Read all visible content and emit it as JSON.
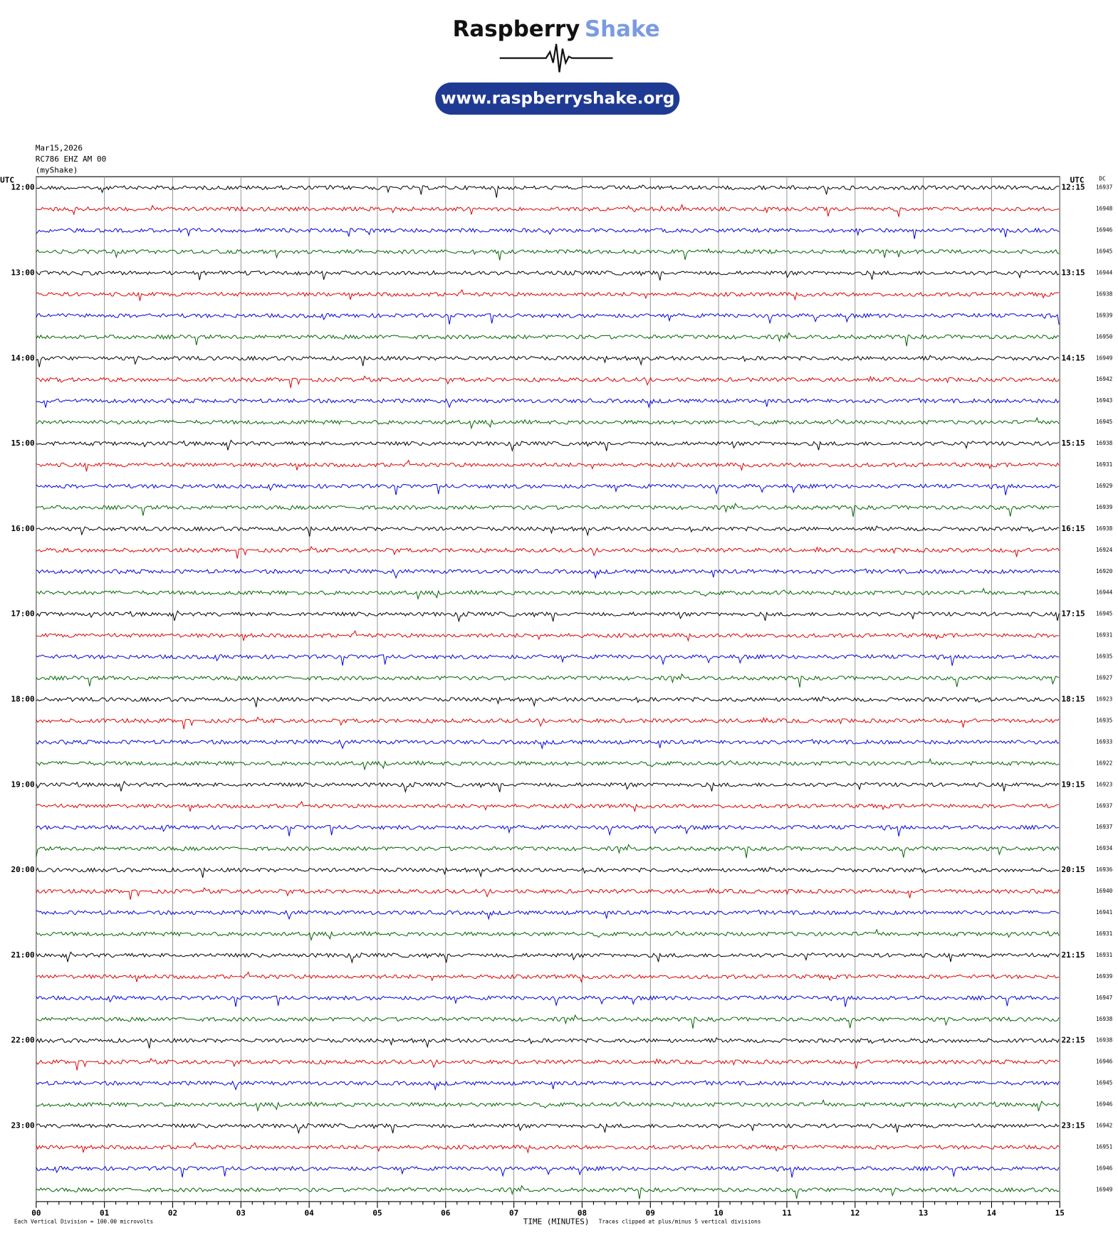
{
  "header": {
    "brand": "Raspberry",
    "brand_accent": "Shake",
    "url": "www.raspberryshake.org"
  },
  "chart_data": {
    "type": "helicorder",
    "date": "Mar15,2026",
    "station": "RC786 EHZ AM 00",
    "owner": "(myShake)",
    "left_axis_label": "UTC",
    "right_axis_label": "UTC",
    "dc_label": "DC",
    "left_labels": [
      "12:00",
      "13:00",
      "14:00",
      "15:00",
      "16:00",
      "17:00",
      "18:00",
      "19:00",
      "20:00",
      "21:00",
      "22:00",
      "23:00"
    ],
    "right_labels": [
      "12:15",
      "13:15",
      "14:15",
      "15:15",
      "16:15",
      "17:15",
      "18:15",
      "19:15",
      "20:15",
      "21:15",
      "22:15",
      "23:15"
    ],
    "dc_values": [
      16937,
      16948,
      16946,
      16945,
      16944,
      16938,
      16939,
      16950,
      16949,
      16942,
      16943,
      16945,
      16938,
      16931,
      16929,
      16939,
      16938,
      16924,
      16920,
      16944,
      16945,
      16931,
      16935,
      16927,
      16923,
      16935,
      16933,
      16922,
      16923,
      16937,
      16937,
      16934,
      16936,
      16940,
      16941,
      16931,
      16931,
      16939,
      16947,
      16938,
      16938,
      16946,
      16945,
      16946,
      16942,
      16951,
      16946,
      16949
    ],
    "trace_colors": [
      "#000000",
      "#e00000",
      "#0000e0",
      "#006400"
    ],
    "xlim": [
      0,
      15
    ],
    "xticks": [
      {
        "value": 0,
        "label": "00"
      },
      {
        "value": 1,
        "label": "01"
      },
      {
        "value": 2,
        "label": "02"
      },
      {
        "value": 3,
        "label": "03"
      },
      {
        "value": 4,
        "label": "04"
      },
      {
        "value": 5,
        "label": "05"
      },
      {
        "value": 6,
        "label": "06"
      },
      {
        "value": 7,
        "label": "07"
      },
      {
        "value": 8,
        "label": "08"
      },
      {
        "value": 9,
        "label": "09"
      },
      {
        "value": 10,
        "label": "10"
      },
      {
        "value": 11,
        "label": "11"
      },
      {
        "value": 12,
        "label": "12"
      },
      {
        "value": 13,
        "label": "13"
      },
      {
        "value": 14,
        "label": "14"
      },
      {
        "value": 15,
        "label": "15"
      }
    ],
    "xlabel": "TIME (MINUTES)",
    "scale_note": "Each Vertical Division =  100.00 microvolts",
    "clip_note": "Traces clipped at plus/minus 5 vertical divisions",
    "grid": true
  }
}
